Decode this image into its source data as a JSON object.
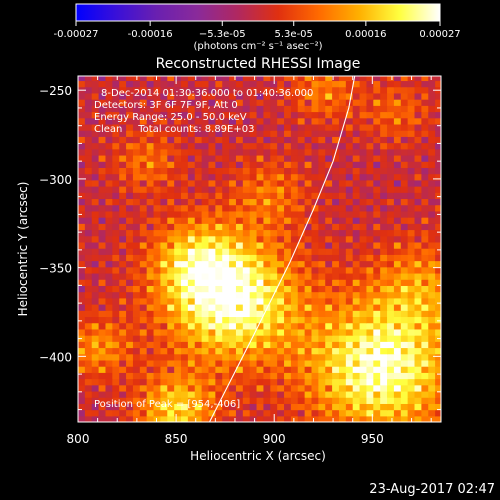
{
  "chart_data": {
    "type": "heatmap",
    "title": "Reconstructed RHESSI Image",
    "xlabel": "Heliocentric X (arcsec)",
    "ylabel": "Heliocentric Y (arcsec)",
    "xlim": [
      800,
      985
    ],
    "ylim": [
      -437,
      -242
    ],
    "x_ticks": [
      800,
      850,
      900,
      950
    ],
    "y_ticks": [
      -250,
      -300,
      -350,
      -400
    ],
    "colorbar": {
      "range": [
        -0.00027,
        0.00027
      ],
      "tick_values": [
        -0.00027,
        -0.00016,
        -5.3e-05,
        5.3e-05,
        0.00016,
        0.00027
      ],
      "tick_labels": [
        "-0.00027",
        "-0.00016",
        "−5.3e-05",
        "5.3e-05",
        "0.00016",
        "0.00027"
      ],
      "unit_label": "(photons cm⁻² s⁻¹ asec⁻²)",
      "colormap": [
        "#0000ff",
        "#3a10d8",
        "#6a20b0",
        "#8a2a9a",
        "#b02860",
        "#e03010",
        "#ff6a00",
        "#ffb000",
        "#ffff40",
        "#ffffff"
      ]
    },
    "annotations": [
      "8-Dec-2014 01:30:36.000 to 01:40:36.000",
      "Detectors: 3F 6F 7F 9F, Att 0",
      "Energy Range: 25.0 - 50.0 keV",
      "Clean     Total counts: 8.89E+03"
    ],
    "peak_label": "Position of Peak = [954,-406]",
    "peak": {
      "x": 954,
      "y": -406
    },
    "limb_curve": [
      [
        867,
        -437
      ],
      [
        890,
        -387
      ],
      [
        908,
        -347
      ],
      [
        920,
        -317
      ],
      [
        930,
        -290
      ],
      [
        938,
        -260
      ],
      [
        941,
        -242
      ]
    ],
    "sources": [
      {
        "x": 878,
        "y": -368,
        "amp": 0.00027,
        "sigma": 24
      },
      {
        "x": 860,
        "y": -345,
        "amp": 0.00013,
        "sigma": 16
      },
      {
        "x": 954,
        "y": -406,
        "amp": 0.00026,
        "sigma": 26
      },
      {
        "x": 975,
        "y": -360,
        "amp": 0.00011,
        "sigma": 18
      },
      {
        "x": 850,
        "y": -430,
        "amp": 0.00018,
        "sigma": 14
      },
      {
        "x": 810,
        "y": -395,
        "amp": 0.00012,
        "sigma": 12
      },
      {
        "x": 835,
        "y": -290,
        "amp": 9e-05,
        "sigma": 12
      },
      {
        "x": 898,
        "y": -308,
        "amp": 9e-05,
        "sigma": 14
      },
      {
        "x": 962,
        "y": -262,
        "amp": 8e-05,
        "sigma": 12
      },
      {
        "x": 925,
        "y": -250,
        "amp": 0.0001,
        "sigma": 12
      }
    ],
    "ringing": {
      "amp": 9e-05,
      "period": 10
    },
    "grid": false
  },
  "footer": {
    "timestamp": "23-Aug-2017 02:47"
  },
  "colors": {
    "background": "#000000",
    "text": "#ffffff",
    "limb": "#ffffff"
  }
}
